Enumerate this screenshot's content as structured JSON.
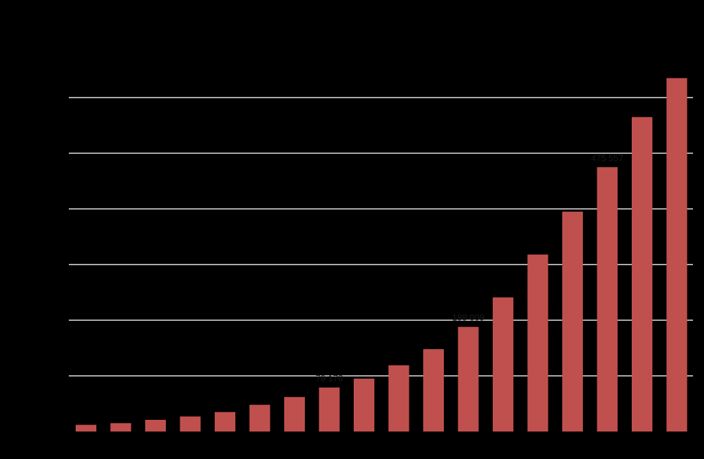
{
  "chart_data": {
    "type": "bar",
    "colors": {
      "background": "#000000",
      "bar": "#c0504d",
      "grid": "#e6e6e6",
      "label": "#1a1a1a"
    },
    "grid": true,
    "legend": "none",
    "ylim": [
      0,
      700000
    ],
    "gridlines": [
      100000,
      200000,
      300000,
      400000,
      500000,
      600000
    ],
    "values": [
      12000,
      15000,
      21000,
      27000,
      35000,
      48000,
      62000,
      79000,
      95000,
      119000,
      148000,
      188000,
      241000,
      318000,
      395000,
      475000,
      565000,
      635000
    ],
    "data_labels": [
      {
        "index": 7,
        "text": "79 178"
      },
      {
        "index": 11,
        "text": "188 009"
      },
      {
        "index": 15,
        "text": "475 557"
      }
    ]
  }
}
